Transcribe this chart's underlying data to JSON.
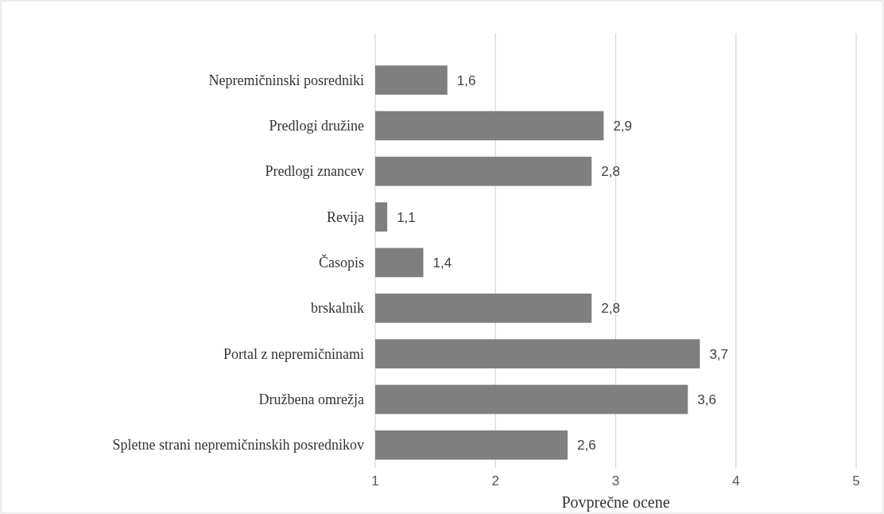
{
  "chart_data": {
    "type": "bar",
    "orientation": "horizontal",
    "xlabel": "Povprečne ocene",
    "categories": [
      "Nepremičninski posredniki",
      "Predlogi družine",
      "Predlogi znancev",
      "Revija",
      "Časopis",
      "brskalnik",
      "Portal z nepremičninami",
      "Družbena omrežja",
      "Spletne strani nepremičninskih posrednikov"
    ],
    "values": [
      1.6,
      2.9,
      2.8,
      1.1,
      1.4,
      2.8,
      3.7,
      3.6,
      2.6
    ],
    "value_labels": [
      "1,6",
      "2,9",
      "2,8",
      "1,1",
      "1,4",
      "2,8",
      "3,7",
      "3,6",
      "2,6"
    ],
    "color": "#7f7f7f",
    "xlim": [
      1,
      5
    ],
    "xticks": [
      1,
      2,
      3,
      4,
      5
    ],
    "grid": "x"
  }
}
